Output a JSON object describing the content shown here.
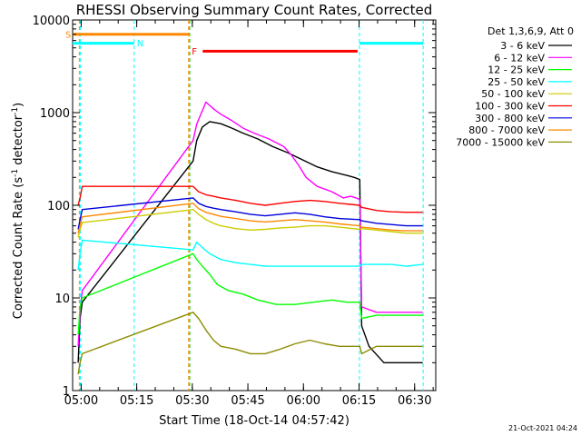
{
  "chart_data": {
    "type": "line",
    "title": "RHESSI Observing Summary Count Rates, Corrected",
    "xlabel": "Start Time (18-Oct-14 04:57:42)",
    "ylabel_main": "Corrected Count Rate (s",
    "ylabel_sup1": "-1",
    "ylabel_mid": " detector",
    "ylabel_sup2": "-1",
    "ylabel_end": ")",
    "x_unit": "minutes after 04:57:42",
    "xlim": [
      0,
      98
    ],
    "ylim": [
      1,
      10000
    ],
    "yscale": "log",
    "x_ticks": [
      {
        "x": 2.3,
        "label": "05:00"
      },
      {
        "x": 17.3,
        "label": "05:15"
      },
      {
        "x": 32.3,
        "label": "05:30"
      },
      {
        "x": 47.3,
        "label": "05:45"
      },
      {
        "x": 62.3,
        "label": "06:00"
      },
      {
        "x": 77.3,
        "label": "06:15"
      },
      {
        "x": 92.3,
        "label": "06:30"
      }
    ],
    "y_ticks": [
      {
        "y": 1,
        "label": "1"
      },
      {
        "y": 10,
        "label": "10"
      },
      {
        "y": 100,
        "label": "100"
      },
      {
        "y": 1000,
        "label": "1000"
      },
      {
        "y": 10000,
        "label": "10000"
      }
    ],
    "legend_title": "Det 1,3,6,9, Att 0",
    "legend_position": "right",
    "series": [
      {
        "name": "3 - 6 keV",
        "color": "#000000",
        "pts": [
          [
            1.5,
            2
          ],
          [
            2,
            6
          ],
          [
            2.6,
            9
          ],
          [
            32.5,
            300
          ],
          [
            33.5,
            500
          ],
          [
            35,
            700
          ],
          [
            37,
            800
          ],
          [
            40,
            760
          ],
          [
            43,
            680
          ],
          [
            46,
            600
          ],
          [
            50,
            520
          ],
          [
            54,
            430
          ],
          [
            58,
            370
          ],
          [
            62,
            310
          ],
          [
            66,
            260
          ],
          [
            70,
            230
          ],
          [
            74,
            210
          ],
          [
            76,
            200
          ],
          [
            77.5,
            190
          ],
          [
            78,
            5
          ],
          [
            80,
            3
          ],
          [
            84,
            2
          ],
          [
            88,
            2
          ],
          [
            92,
            2
          ],
          [
            94.5,
            2
          ]
        ]
      },
      {
        "name": "6 - 12 keV",
        "color": "#ff00ff",
        "pts": [
          [
            1.5,
            3
          ],
          [
            2,
            7
          ],
          [
            2.6,
            12
          ],
          [
            32.5,
            500
          ],
          [
            33.5,
            750
          ],
          [
            35,
            1050
          ],
          [
            36,
            1300
          ],
          [
            38,
            1100
          ],
          [
            40,
            960
          ],
          [
            43,
            820
          ],
          [
            46,
            680
          ],
          [
            49,
            600
          ],
          [
            53,
            520
          ],
          [
            57,
            430
          ],
          [
            59,
            350
          ],
          [
            61,
            270
          ],
          [
            63,
            200
          ],
          [
            66,
            160
          ],
          [
            70,
            140
          ],
          [
            73,
            120
          ],
          [
            75,
            125
          ],
          [
            76.5,
            120
          ],
          [
            77.5,
            115
          ],
          [
            78,
            8
          ],
          [
            82,
            7
          ],
          [
            86,
            7
          ],
          [
            90,
            7
          ],
          [
            94.5,
            7
          ]
        ]
      },
      {
        "name": "12 - 25 keV",
        "color": "#00ff00",
        "pts": [
          [
            1.5,
            4
          ],
          [
            2,
            8
          ],
          [
            2.6,
            10
          ],
          [
            32.5,
            30
          ],
          [
            33.5,
            26
          ],
          [
            35,
            22
          ],
          [
            37,
            18
          ],
          [
            39,
            14
          ],
          [
            42,
            12
          ],
          [
            46,
            11
          ],
          [
            50,
            9.5
          ],
          [
            55,
            8.5
          ],
          [
            60,
            8.5
          ],
          [
            65,
            9
          ],
          [
            70,
            9.5
          ],
          [
            74,
            9
          ],
          [
            77.5,
            9
          ],
          [
            78,
            6
          ],
          [
            82,
            6.5
          ],
          [
            86,
            6.5
          ],
          [
            90,
            6.5
          ],
          [
            94.5,
            6.5
          ]
        ]
      },
      {
        "name": "25 - 50 keV",
        "color": "#00ffff",
        "pts": [
          [
            1.5,
            20
          ],
          [
            2,
            30
          ],
          [
            2.6,
            42
          ],
          [
            32.5,
            33
          ],
          [
            33.5,
            40
          ],
          [
            35,
            35
          ],
          [
            37,
            30
          ],
          [
            40,
            26
          ],
          [
            44,
            24
          ],
          [
            48,
            23
          ],
          [
            52,
            22
          ],
          [
            56,
            22
          ],
          [
            60,
            22
          ],
          [
            65,
            22
          ],
          [
            70,
            22
          ],
          [
            75,
            22
          ],
          [
            77.5,
            22
          ],
          [
            78,
            23
          ],
          [
            82,
            23
          ],
          [
            86,
            23
          ],
          [
            90,
            22
          ],
          [
            94.5,
            23
          ]
        ]
      },
      {
        "name": "50 - 100 keV",
        "color": "#cccc00",
        "pts": [
          [
            1.5,
            45
          ],
          [
            2,
            55
          ],
          [
            2.6,
            65
          ],
          [
            32.5,
            90
          ],
          [
            34,
            80
          ],
          [
            36,
            70
          ],
          [
            38,
            64
          ],
          [
            40,
            60
          ],
          [
            44,
            56
          ],
          [
            48,
            54
          ],
          [
            52,
            55
          ],
          [
            56,
            57
          ],
          [
            60,
            58
          ],
          [
            64,
            60
          ],
          [
            68,
            60
          ],
          [
            72,
            58
          ],
          [
            77.5,
            55
          ],
          [
            78,
            56
          ],
          [
            82,
            54
          ],
          [
            86,
            52
          ],
          [
            90,
            50
          ],
          [
            94.5,
            50
          ]
        ]
      },
      {
        "name": "100 - 300 keV",
        "color": "#ff0000",
        "pts": [
          [
            1.5,
            100
          ],
          [
            2,
            120
          ],
          [
            2.6,
            160
          ],
          [
            32.5,
            160
          ],
          [
            34,
            140
          ],
          [
            36,
            130
          ],
          [
            38,
            125
          ],
          [
            40,
            120
          ],
          [
            44,
            113
          ],
          [
            48,
            105
          ],
          [
            52,
            100
          ],
          [
            56,
            105
          ],
          [
            60,
            110
          ],
          [
            64,
            113
          ],
          [
            68,
            110
          ],
          [
            72,
            105
          ],
          [
            77.5,
            100
          ],
          [
            78,
            95
          ],
          [
            82,
            88
          ],
          [
            86,
            85
          ],
          [
            90,
            84
          ],
          [
            94.5,
            84
          ]
        ]
      },
      {
        "name": "300 - 800 keV",
        "color": "#0000dd",
        "pts": [
          [
            1.5,
            55
          ],
          [
            2,
            70
          ],
          [
            2.6,
            90
          ],
          [
            32.5,
            120
          ],
          [
            34,
            105
          ],
          [
            36,
            97
          ],
          [
            38,
            93
          ],
          [
            40,
            90
          ],
          [
            44,
            85
          ],
          [
            48,
            80
          ],
          [
            52,
            77
          ],
          [
            56,
            80
          ],
          [
            60,
            83
          ],
          [
            64,
            80
          ],
          [
            68,
            75
          ],
          [
            72,
            72
          ],
          [
            77.5,
            70
          ],
          [
            78,
            68
          ],
          [
            82,
            64
          ],
          [
            86,
            62
          ],
          [
            90,
            60
          ],
          [
            94.5,
            60
          ]
        ]
      },
      {
        "name": "800 - 7000 keV",
        "color": "#ff8800",
        "pts": [
          [
            1.5,
            50
          ],
          [
            2,
            60
          ],
          [
            2.6,
            75
          ],
          [
            32.5,
            105
          ],
          [
            34,
            92
          ],
          [
            36,
            84
          ],
          [
            38,
            80
          ],
          [
            40,
            76
          ],
          [
            44,
            72
          ],
          [
            48,
            68
          ],
          [
            52,
            66
          ],
          [
            56,
            68
          ],
          [
            60,
            70
          ],
          [
            64,
            68
          ],
          [
            68,
            66
          ],
          [
            72,
            63
          ],
          [
            77.5,
            60
          ],
          [
            78,
            58
          ],
          [
            82,
            56
          ],
          [
            86,
            54
          ],
          [
            90,
            53
          ],
          [
            94.5,
            53
          ]
        ]
      },
      {
        "name": "7000 - 15000 keV",
        "color": "#8b8b00",
        "pts": [
          [
            1.5,
            1.5
          ],
          [
            2,
            2
          ],
          [
            2.6,
            2.5
          ],
          [
            32.5,
            7
          ],
          [
            34,
            6
          ],
          [
            36,
            4.5
          ],
          [
            38,
            3.5
          ],
          [
            40,
            3
          ],
          [
            44,
            2.8
          ],
          [
            48,
            2.5
          ],
          [
            52,
            2.5
          ],
          [
            56,
            2.8
          ],
          [
            60,
            3.2
          ],
          [
            64,
            3.5
          ],
          [
            68,
            3.2
          ],
          [
            72,
            3
          ],
          [
            77.5,
            3
          ],
          [
            78,
            2.5
          ],
          [
            82,
            3
          ],
          [
            86,
            3
          ],
          [
            90,
            3
          ],
          [
            94.5,
            3
          ]
        ]
      }
    ],
    "flag_bars": [
      {
        "label": "S",
        "color": "#ff8800",
        "x_start": 0,
        "x_end": 31.3,
        "y": 7000
      },
      {
        "label": "N",
        "color": "#00ffff",
        "x_start": 0,
        "x_end": 16.6,
        "y": 5600
      },
      {
        "label": "F",
        "color": "#ff0000",
        "x_start": 35.1,
        "x_end": 76.9,
        "y": 4600
      },
      {
        "label": "",
        "color": "#00ffff",
        "x_start": 77.4,
        "x_end": 94.6,
        "y": 5600
      }
    ],
    "vlines": [
      {
        "x": 1.8,
        "color": "#ff8800"
      },
      {
        "x": 2.1,
        "color": "#00ffff"
      },
      {
        "x": 16.6,
        "color": "#00ffff"
      },
      {
        "x": 31.3,
        "color": "#ff8800"
      },
      {
        "x": 31.6,
        "color": "#00cc00"
      },
      {
        "x": 77.4,
        "color": "#00ffff"
      },
      {
        "x": 94.6,
        "color": "#00ffff"
      }
    ],
    "timestamp": "21-Oct-2021 04:24"
  }
}
